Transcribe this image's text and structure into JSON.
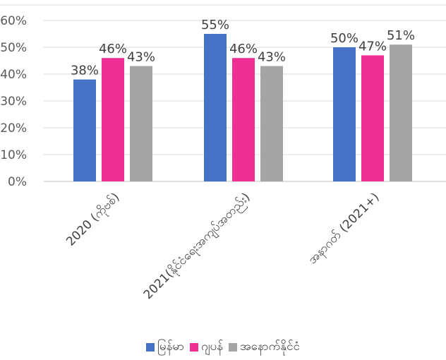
{
  "chart_data": {
    "type": "bar",
    "categories": [
      "2020 (ကိုဗစ်)",
      "2021(နိုင်ငံရေးအကျပ်အတည်း)",
      "အနာဂတ် (2021+)"
    ],
    "series": [
      {
        "name": "မြန်မာ",
        "values": [
          38,
          55,
          50
        ],
        "labels": [
          "38%",
          "55%",
          "50%"
        ],
        "color": "#4472C4"
      },
      {
        "name": "ဂျပန်",
        "values": [
          46,
          46,
          47
        ],
        "labels": [
          "46%",
          "46%",
          "47%"
        ],
        "color": "#F02F94"
      },
      {
        "name": "အနောက်နိုင်ငံ",
        "values": [
          43,
          43,
          51
        ],
        "labels": [
          "43%",
          "43%",
          "51%"
        ],
        "color": "#A5A5A5"
      }
    ],
    "yticks": [
      "0%",
      "10%",
      "20%",
      "30%",
      "40%",
      "50%",
      "60%"
    ],
    "ylim": [
      0,
      60
    ],
    "grid": true,
    "legend": "bottom"
  }
}
